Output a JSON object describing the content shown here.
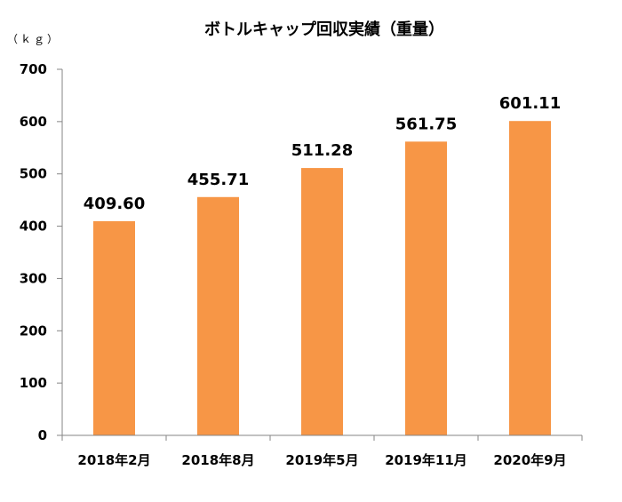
{
  "chart_data": {
    "type": "bar",
    "title": "ボトルキャップ回収実績（重量）",
    "unit_label": "（ｋｇ）",
    "categories": [
      "2018年2月",
      "2018年8月",
      "2019年5月",
      "2019年11月",
      "2020年9月"
    ],
    "values": [
      409.6,
      455.71,
      511.28,
      561.75,
      601.11
    ],
    "data_labels": [
      "409.60",
      "455.71",
      "511.28",
      "561.75",
      "601.11"
    ],
    "ylim": [
      0,
      700
    ],
    "yticks": [
      0,
      100,
      200,
      300,
      400,
      500,
      600,
      700
    ],
    "grid": false,
    "legend": "none",
    "bar_color": "#F79646",
    "axis_color": "#868686"
  }
}
